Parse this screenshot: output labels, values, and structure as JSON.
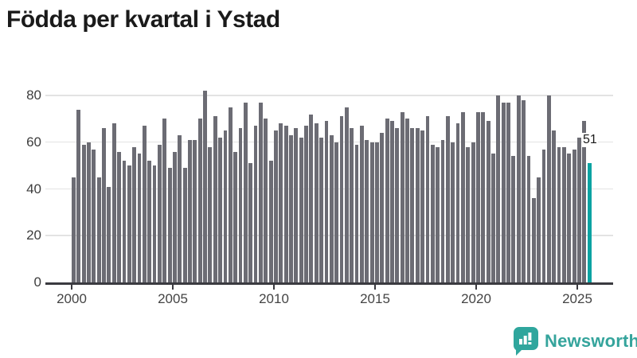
{
  "title": "Födda per kvartal i Ystad",
  "annotation": {
    "last_value_label": "51"
  },
  "branding": {
    "name": "Newsworthy",
    "icon": "newsworthy-speech-bubble-barchart-icon"
  },
  "colors": {
    "bar": "#6c6c74",
    "highlight": "#0ba3a2",
    "brand": "#35a49c",
    "grid": "#e3e3e3",
    "axis": "#3a3a40",
    "tick_label": "#444444",
    "title": "#1a1a1a"
  },
  "chart_data": {
    "type": "bar",
    "title": "Födda per kvartal i Ystad",
    "x_frequency": "quarterly",
    "x_start": "2000 Q1",
    "x_end": "2025 Q3",
    "x_tick_labels": [
      "2000",
      "2005",
      "2010",
      "2015",
      "2020",
      "2025"
    ],
    "y_ticks": [
      0,
      20,
      40,
      60,
      80
    ],
    "ylim": [
      0,
      84
    ],
    "grid": true,
    "highlight_last": true,
    "highlight_value_label": "51",
    "values": [
      45,
      74,
      59,
      60,
      57,
      45,
      66,
      41,
      68,
      56,
      52,
      50,
      58,
      55,
      67,
      52,
      50,
      59,
      70,
      49,
      56,
      63,
      49,
      61,
      61,
      70,
      82,
      58,
      71,
      62,
      65,
      75,
      56,
      66,
      77,
      51,
      67,
      77,
      70,
      52,
      65,
      68,
      67,
      63,
      66,
      62,
      67,
      72,
      68,
      62,
      69,
      63,
      60,
      71,
      75,
      66,
      59,
      67,
      61,
      60,
      60,
      64,
      70,
      69,
      66,
      73,
      70,
      66,
      66,
      65,
      71,
      59,
      58,
      61,
      71,
      60,
      68,
      73,
      58,
      60,
      73,
      73,
      69,
      55,
      80,
      77,
      77,
      54,
      80,
      78,
      54,
      36,
      45,
      57,
      80,
      65,
      58,
      58,
      55,
      57,
      62,
      69,
      51
    ]
  }
}
